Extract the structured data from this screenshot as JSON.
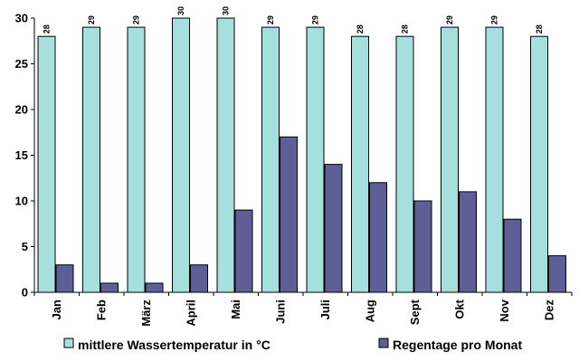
{
  "chart_data": {
    "type": "bar",
    "categories": [
      "Jan",
      "Feb",
      "März",
      "April",
      "Mai",
      "Juni",
      "Juli",
      "Aug",
      "Sept",
      "Okt",
      "Nov",
      "Dez"
    ],
    "series": [
      {
        "name": "mittlere Wassertemperatur in °C",
        "values": [
          28,
          29,
          29,
          30,
          30,
          29,
          29,
          28,
          28,
          29,
          29,
          28
        ],
        "data_labels": [
          "28",
          "29",
          "29",
          "30",
          "30",
          "29",
          "29",
          "28",
          "28",
          "29",
          "29",
          "28"
        ],
        "color": "#a6e0de"
      },
      {
        "name": "Regentage pro Monat",
        "values": [
          3,
          1,
          1,
          3,
          9,
          17,
          14,
          12,
          10,
          11,
          8,
          4
        ],
        "color": "#5f5f97"
      }
    ],
    "y_ticks": [
      "0",
      "5",
      "10",
      "15",
      "20",
      "25",
      "30"
    ],
    "ylim": [
      0,
      30
    ],
    "grid": false,
    "legend_position": "bottom"
  }
}
